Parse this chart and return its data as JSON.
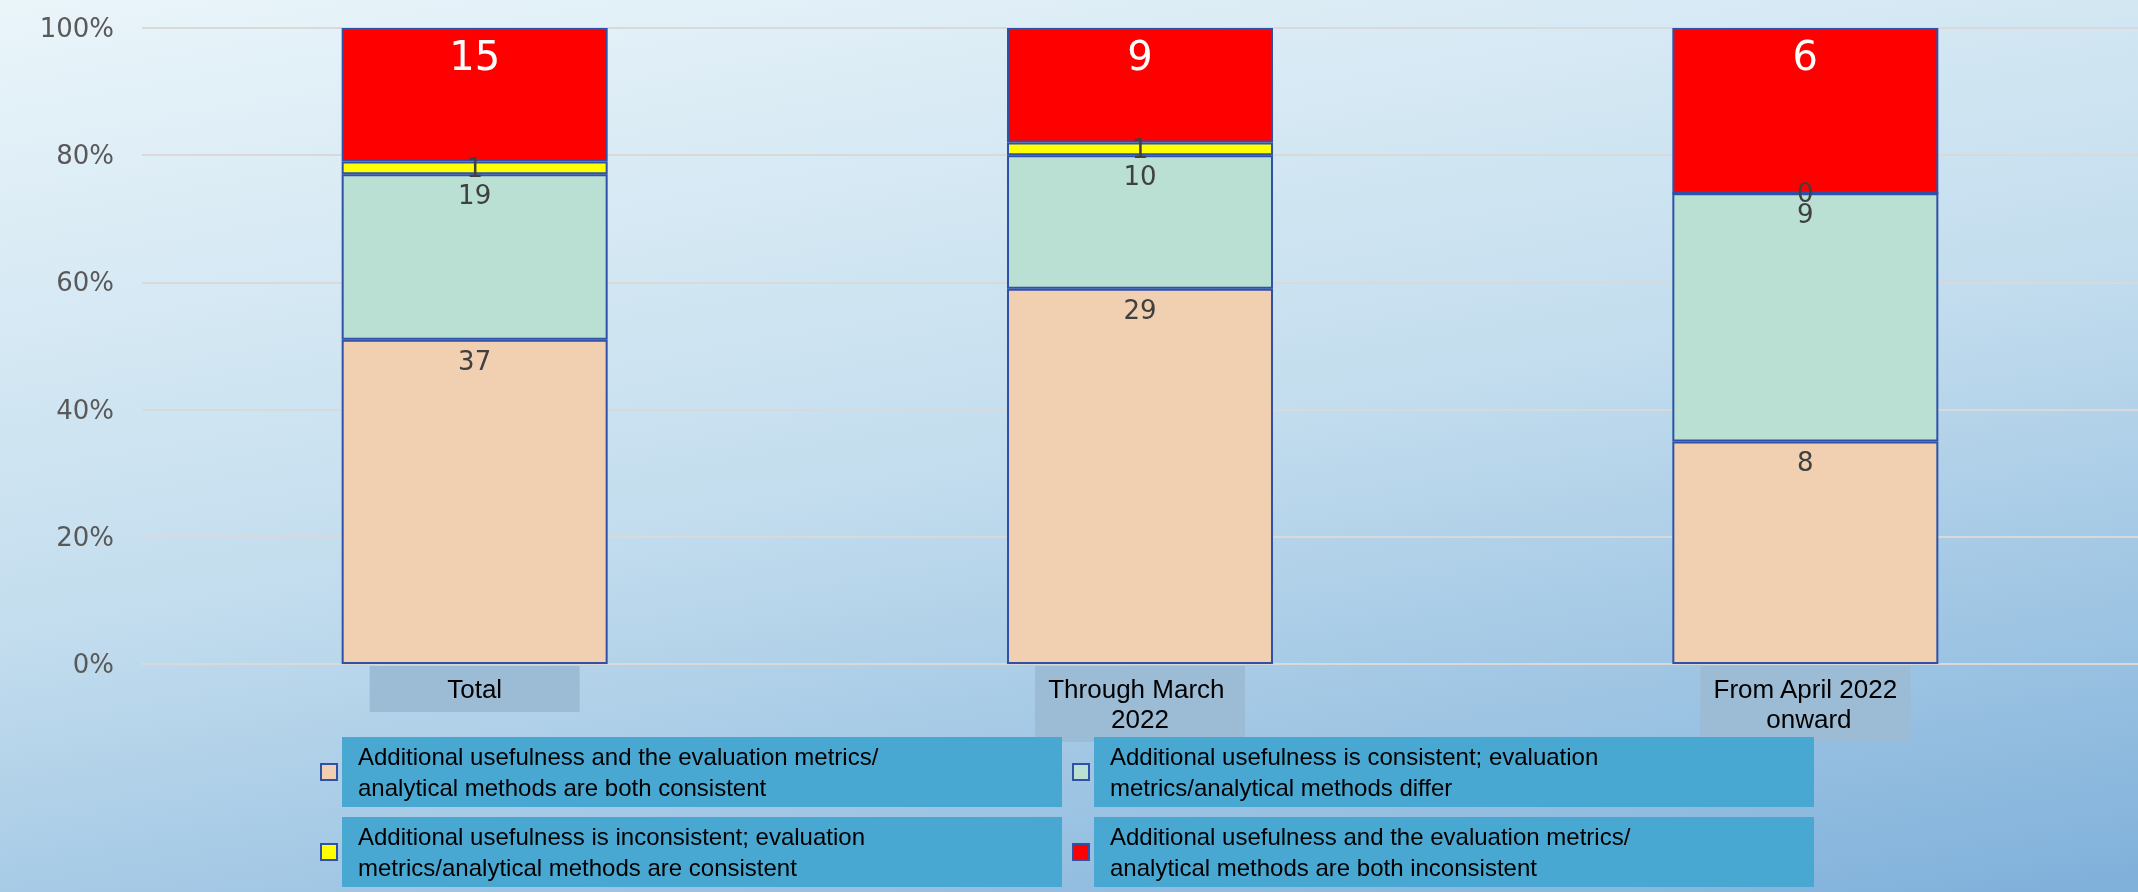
{
  "chart_data": {
    "type": "bar",
    "stacked": true,
    "categories": [
      "Total",
      "Through March 2022",
      "From April 2022 onward"
    ],
    "series": [
      {
        "name": "Additional usefulness and the evaluation metrics/analytical methods are both consistent",
        "color": "#f0d0b0",
        "values": [
          51,
          59,
          35
        ]
      },
      {
        "name": "Additional usefulness is consistent; evaluation metrics/analytical methods differ",
        "color": "#b9e0d3",
        "values": [
          26,
          21,
          39
        ]
      },
      {
        "name": "Additional usefulness is inconsistent; evaluation metrics/analytical methods are consistent",
        "color": "#ffff00",
        "values": [
          2,
          2,
          0
        ]
      },
      {
        "name": "Additional usefulness and the evaluation metrics/analytical methods are both inconsistent",
        "color": "#ff0000",
        "values": [
          21,
          18,
          26
        ]
      }
    ],
    "annotations": [
      {
        "text": "37",
        "x": "Total",
        "y": 51
      },
      {
        "text": "19",
        "x": "Total",
        "y": 77
      },
      {
        "text": "1",
        "x": "Total",
        "y": 79
      },
      {
        "text": "15",
        "x": "Total",
        "y": 100
      },
      {
        "text": "29",
        "x": "Through March 2022",
        "y": 59
      },
      {
        "text": "10",
        "x": "Through March 2022",
        "y": 80
      },
      {
        "text": "1",
        "x": "Through March 2022",
        "y": 82
      },
      {
        "text": "9",
        "x": "Through March 2022",
        "y": 100
      },
      {
        "text": "8",
        "x": "From April 2022 onward",
        "y": 35
      },
      {
        "text": "9",
        "x": "From April 2022 onward",
        "y": 74
      },
      {
        "text": "0",
        "x": "From April 2022 onward",
        "y": 74
      },
      {
        "text": "6",
        "x": "From April 2022 onward",
        "y": 100
      }
    ],
    "ylim": [
      0,
      100
    ],
    "yticks": [
      {
        "value": 0,
        "label": "0%"
      },
      {
        "value": 20,
        "label": "20%"
      },
      {
        "value": 40,
        "label": "40%"
      },
      {
        "value": 60,
        "label": "60%"
      },
      {
        "value": 80,
        "label": "80%"
      },
      {
        "value": 100,
        "label": "100%"
      }
    ],
    "grid": "y",
    "legend": "bottom"
  }
}
